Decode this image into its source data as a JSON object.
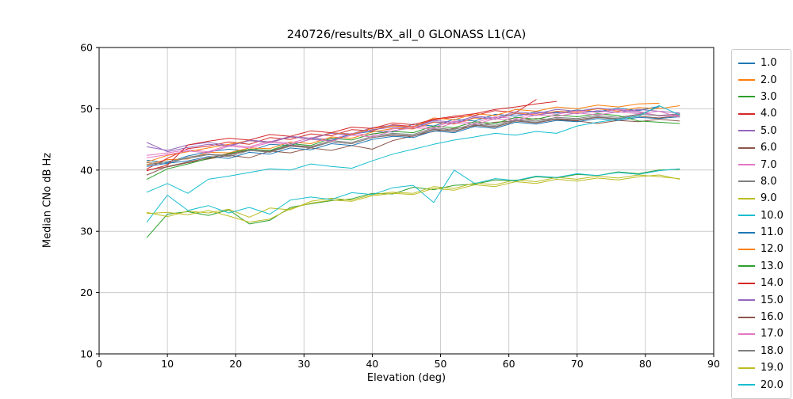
{
  "chart_data": {
    "type": "line",
    "title": "240726/results/BX_all_0 GLONASS L1(CA)",
    "xlabel": "Elevation (deg)",
    "ylabel": "Median CNo dB Hz",
    "xlim": [
      0,
      90
    ],
    "ylim": [
      10,
      60
    ],
    "xticks": [
      0,
      10,
      20,
      30,
      40,
      50,
      60,
      70,
      80,
      90
    ],
    "yticks": [
      10,
      20,
      30,
      40,
      50,
      60
    ],
    "grid": true,
    "legend_position": "right-outside",
    "x": [
      7,
      10,
      13,
      16,
      19,
      22,
      25,
      28,
      31,
      34,
      37,
      40,
      43,
      46,
      49,
      52,
      55,
      58,
      61,
      64,
      67,
      70,
      73,
      76,
      79,
      82,
      85
    ],
    "series": [
      {
        "name": "1.0",
        "color": "#1f77b4",
        "values": [
          41.6,
          41.2,
          42.3,
          43.0,
          43.4,
          43.1,
          44.2,
          44.0,
          45.1,
          44.8,
          45.9,
          46.3,
          46.2,
          47.5,
          47.2,
          48.3,
          48.0,
          49.1,
          48.8,
          49.5,
          49.3,
          49.8,
          49.5,
          50.1,
          49.7,
          50.4,
          null
        ]
      },
      {
        "name": "2.0",
        "color": "#ff7f0e",
        "values": [
          40.9,
          41.7,
          41.8,
          42.9,
          42.8,
          43.6,
          43.5,
          44.6,
          44.3,
          45.4,
          45.2,
          46.2,
          46.8,
          46.7,
          47.8,
          47.5,
          48.5,
          48.3,
          49.3,
          49.0,
          49.6,
          49.4,
          50.0,
          49.6,
          50.2,
          50.0,
          50.5
        ]
      },
      {
        "name": "3.0",
        "color": "#2ca02c",
        "values": [
          29.0,
          32.8,
          33.2,
          32.6,
          33.5,
          31.2,
          31.8,
          33.9,
          34.5,
          35.0,
          35.3,
          36.2,
          36.1,
          37.2,
          36.8,
          37.5,
          37.7,
          38.4,
          38.2,
          38.9,
          38.7,
          39.3,
          39.1,
          39.7,
          39.4,
          40.0,
          40.1
        ]
      },
      {
        "name": "4.0",
        "color": "#d62728",
        "values": [
          40.2,
          41.9,
          43.5,
          43.9,
          44.6,
          44.2,
          45.3,
          45.0,
          45.9,
          45.6,
          46.6,
          46.4,
          47.4,
          47.1,
          48.2,
          48.6,
          48.9,
          49.7,
          49.4,
          51.5,
          null,
          null,
          null,
          null,
          null,
          null,
          null
        ]
      },
      {
        "name": "5.0",
        "color": "#9467bd",
        "values": [
          43.8,
          43.2,
          44.1,
          44.5,
          44.0,
          44.9,
          44.6,
          45.5,
          45.2,
          46.1,
          45.9,
          46.9,
          47.3,
          47.0,
          48.1,
          47.8,
          48.8,
          48.5,
          49.5,
          49.2,
          49.9,
          49.6,
          50.1,
          49.8,
          49.4,
          48.9,
          49.1
        ]
      },
      {
        "name": "6.0",
        "color": "#8c564b",
        "values": [
          40.0,
          40.5,
          41.2,
          41.8,
          42.4,
          42.0,
          43.1,
          42.8,
          43.6,
          43.2,
          44.0,
          43.4,
          44.8,
          45.6,
          46.3,
          46.8,
          47.2,
          47.8,
          48.0,
          48.4,
          48.2,
          48.0,
          47.6,
          48.1,
          47.9,
          48.3,
          48.0
        ]
      },
      {
        "name": "7.0",
        "color": "#e377c2",
        "values": [
          42.4,
          42.8,
          43.3,
          43.0,
          44.1,
          43.8,
          44.7,
          44.4,
          45.3,
          45.0,
          46.0,
          45.7,
          46.7,
          47.2,
          47.0,
          48.0,
          47.7,
          48.7,
          48.4,
          49.4,
          49.1,
          49.7,
          49.4,
          49.9,
          49.6,
          48.8,
          49.0
        ]
      },
      {
        "name": "8.0",
        "color": "#7f7f7f",
        "values": [
          41.2,
          41.0,
          42.1,
          42.6,
          42.4,
          43.4,
          43.1,
          44.1,
          43.8,
          44.8,
          44.5,
          45.5,
          46.0,
          45.8,
          46.9,
          46.6,
          47.6,
          47.3,
          48.3,
          48.0,
          48.6,
          48.4,
          48.9,
          48.6,
          49.1,
          48.9,
          49.2
        ]
      },
      {
        "name": "9.0",
        "color": "#bcbd22",
        "values": [
          33.1,
          32.4,
          33.3,
          33.0,
          33.6,
          32.3,
          33.8,
          33.5,
          34.9,
          35.4,
          35.1,
          36.0,
          36.4,
          36.2,
          37.3,
          37.0,
          37.9,
          37.6,
          38.4,
          38.1,
          38.8,
          38.5,
          39.0,
          38.7,
          39.2,
          38.9,
          38.6
        ]
      },
      {
        "name": "10.0",
        "color": "#17becf",
        "values": [
          31.5,
          35.9,
          33.4,
          34.2,
          33.0,
          33.9,
          32.8,
          35.1,
          35.6,
          35.2,
          36.3,
          36.0,
          37.1,
          37.5,
          34.7,
          40.0,
          37.8,
          38.6,
          38.3,
          39.0,
          38.8,
          39.4,
          39.1,
          39.6,
          39.3,
          39.9,
          40.2
        ]
      },
      {
        "name": "11.0",
        "color": "#1f77b4",
        "values": [
          40.6,
          41.1,
          41.5,
          42.2,
          41.9,
          42.9,
          42.6,
          43.6,
          43.3,
          44.3,
          44.0,
          45.0,
          45.5,
          45.3,
          46.4,
          46.1,
          47.1,
          46.8,
          47.8,
          47.5,
          48.1,
          47.9,
          48.4,
          48.1,
          48.6,
          48.4,
          48.7
        ]
      },
      {
        "name": "12.0",
        "color": "#ff7f0e",
        "values": [
          41.3,
          42.4,
          43.0,
          43.6,
          44.2,
          44.8,
          44.5,
          45.4,
          45.1,
          46.1,
          45.8,
          46.8,
          47.2,
          47.0,
          48.5,
          48.2,
          49.2,
          48.9,
          49.9,
          49.6,
          50.3,
          50.0,
          50.6,
          50.3,
          50.8,
          50.9,
          null
        ]
      },
      {
        "name": "13.0",
        "color": "#2ca02c",
        "values": [
          38.5,
          40.2,
          41.0,
          41.9,
          42.7,
          43.4,
          43.2,
          44.3,
          44.0,
          45.2,
          44.9,
          45.9,
          46.3,
          46.1,
          47.2,
          46.9,
          47.9,
          47.6,
          48.6,
          48.3,
          49.0,
          48.7,
          49.2,
          48.9,
          48.0,
          47.8,
          47.6
        ]
      },
      {
        "name": "14.0",
        "color": "#d62728",
        "values": [
          39.9,
          40.8,
          44.1,
          44.7,
          45.2,
          44.9,
          45.8,
          45.5,
          46.4,
          46.1,
          47.0,
          46.8,
          47.7,
          47.4,
          48.3,
          48.8,
          49.2,
          49.9,
          50.3,
          50.8,
          51.2,
          null,
          null,
          null,
          null,
          null,
          null
        ]
      },
      {
        "name": "15.0",
        "color": "#9467bd",
        "values": [
          44.5,
          43.0,
          43.7,
          44.2,
          43.9,
          44.8,
          44.5,
          45.4,
          45.1,
          46.0,
          45.7,
          46.6,
          47.0,
          46.8,
          47.9,
          47.6,
          48.6,
          48.3,
          49.2,
          48.9,
          49.5,
          49.2,
          49.7,
          49.4,
          49.9,
          49.6,
          49.3
        ]
      },
      {
        "name": "16.0",
        "color": "#8c564b",
        "values": [
          39.2,
          40.6,
          41.3,
          42.0,
          42.6,
          43.2,
          43.0,
          44.0,
          43.7,
          44.6,
          44.3,
          45.3,
          45.7,
          45.5,
          46.6,
          46.3,
          47.3,
          47.0,
          48.0,
          47.7,
          48.3,
          48.1,
          48.6,
          48.3,
          48.8,
          48.5,
          48.9
        ]
      },
      {
        "name": "17.0",
        "color": "#e377c2",
        "values": [
          42.0,
          42.5,
          43.1,
          42.8,
          43.9,
          43.6,
          44.5,
          44.2,
          45.0,
          44.7,
          45.7,
          45.4,
          46.4,
          46.9,
          46.7,
          47.7,
          47.4,
          48.4,
          48.1,
          49.0,
          48.8,
          49.3,
          49.0,
          49.5,
          49.2,
          49.6,
          48.6
        ]
      },
      {
        "name": "18.0",
        "color": "#7f7f7f",
        "values": [
          40.8,
          41.4,
          41.9,
          42.5,
          42.2,
          43.2,
          42.9,
          43.9,
          43.6,
          44.6,
          44.3,
          45.3,
          45.8,
          45.6,
          46.7,
          46.4,
          47.4,
          47.1,
          48.1,
          47.8,
          48.4,
          48.2,
          48.7,
          48.4,
          49.0,
          50.3,
          null
        ]
      },
      {
        "name": "19.0",
        "color": "#bcbd22",
        "values": [
          32.9,
          33.1,
          32.7,
          33.4,
          32.5,
          31.5,
          32.0,
          33.7,
          34.6,
          35.1,
          34.9,
          35.8,
          36.2,
          36.0,
          37.0,
          36.7,
          37.6,
          37.3,
          38.1,
          37.8,
          38.5,
          38.2,
          38.7,
          38.4,
          38.9,
          39.2,
          38.5
        ]
      },
      {
        "name": "20.0",
        "color": "#17becf",
        "values": [
          36.4,
          37.8,
          36.2,
          38.5,
          39.0,
          39.6,
          40.2,
          40.0,
          41.0,
          40.6,
          40.3,
          41.5,
          42.6,
          43.4,
          44.2,
          44.9,
          45.4,
          46.0,
          45.7,
          46.3,
          46.0,
          47.2,
          47.8,
          48.3,
          48.8,
          50.5,
          49.0
        ]
      }
    ]
  }
}
